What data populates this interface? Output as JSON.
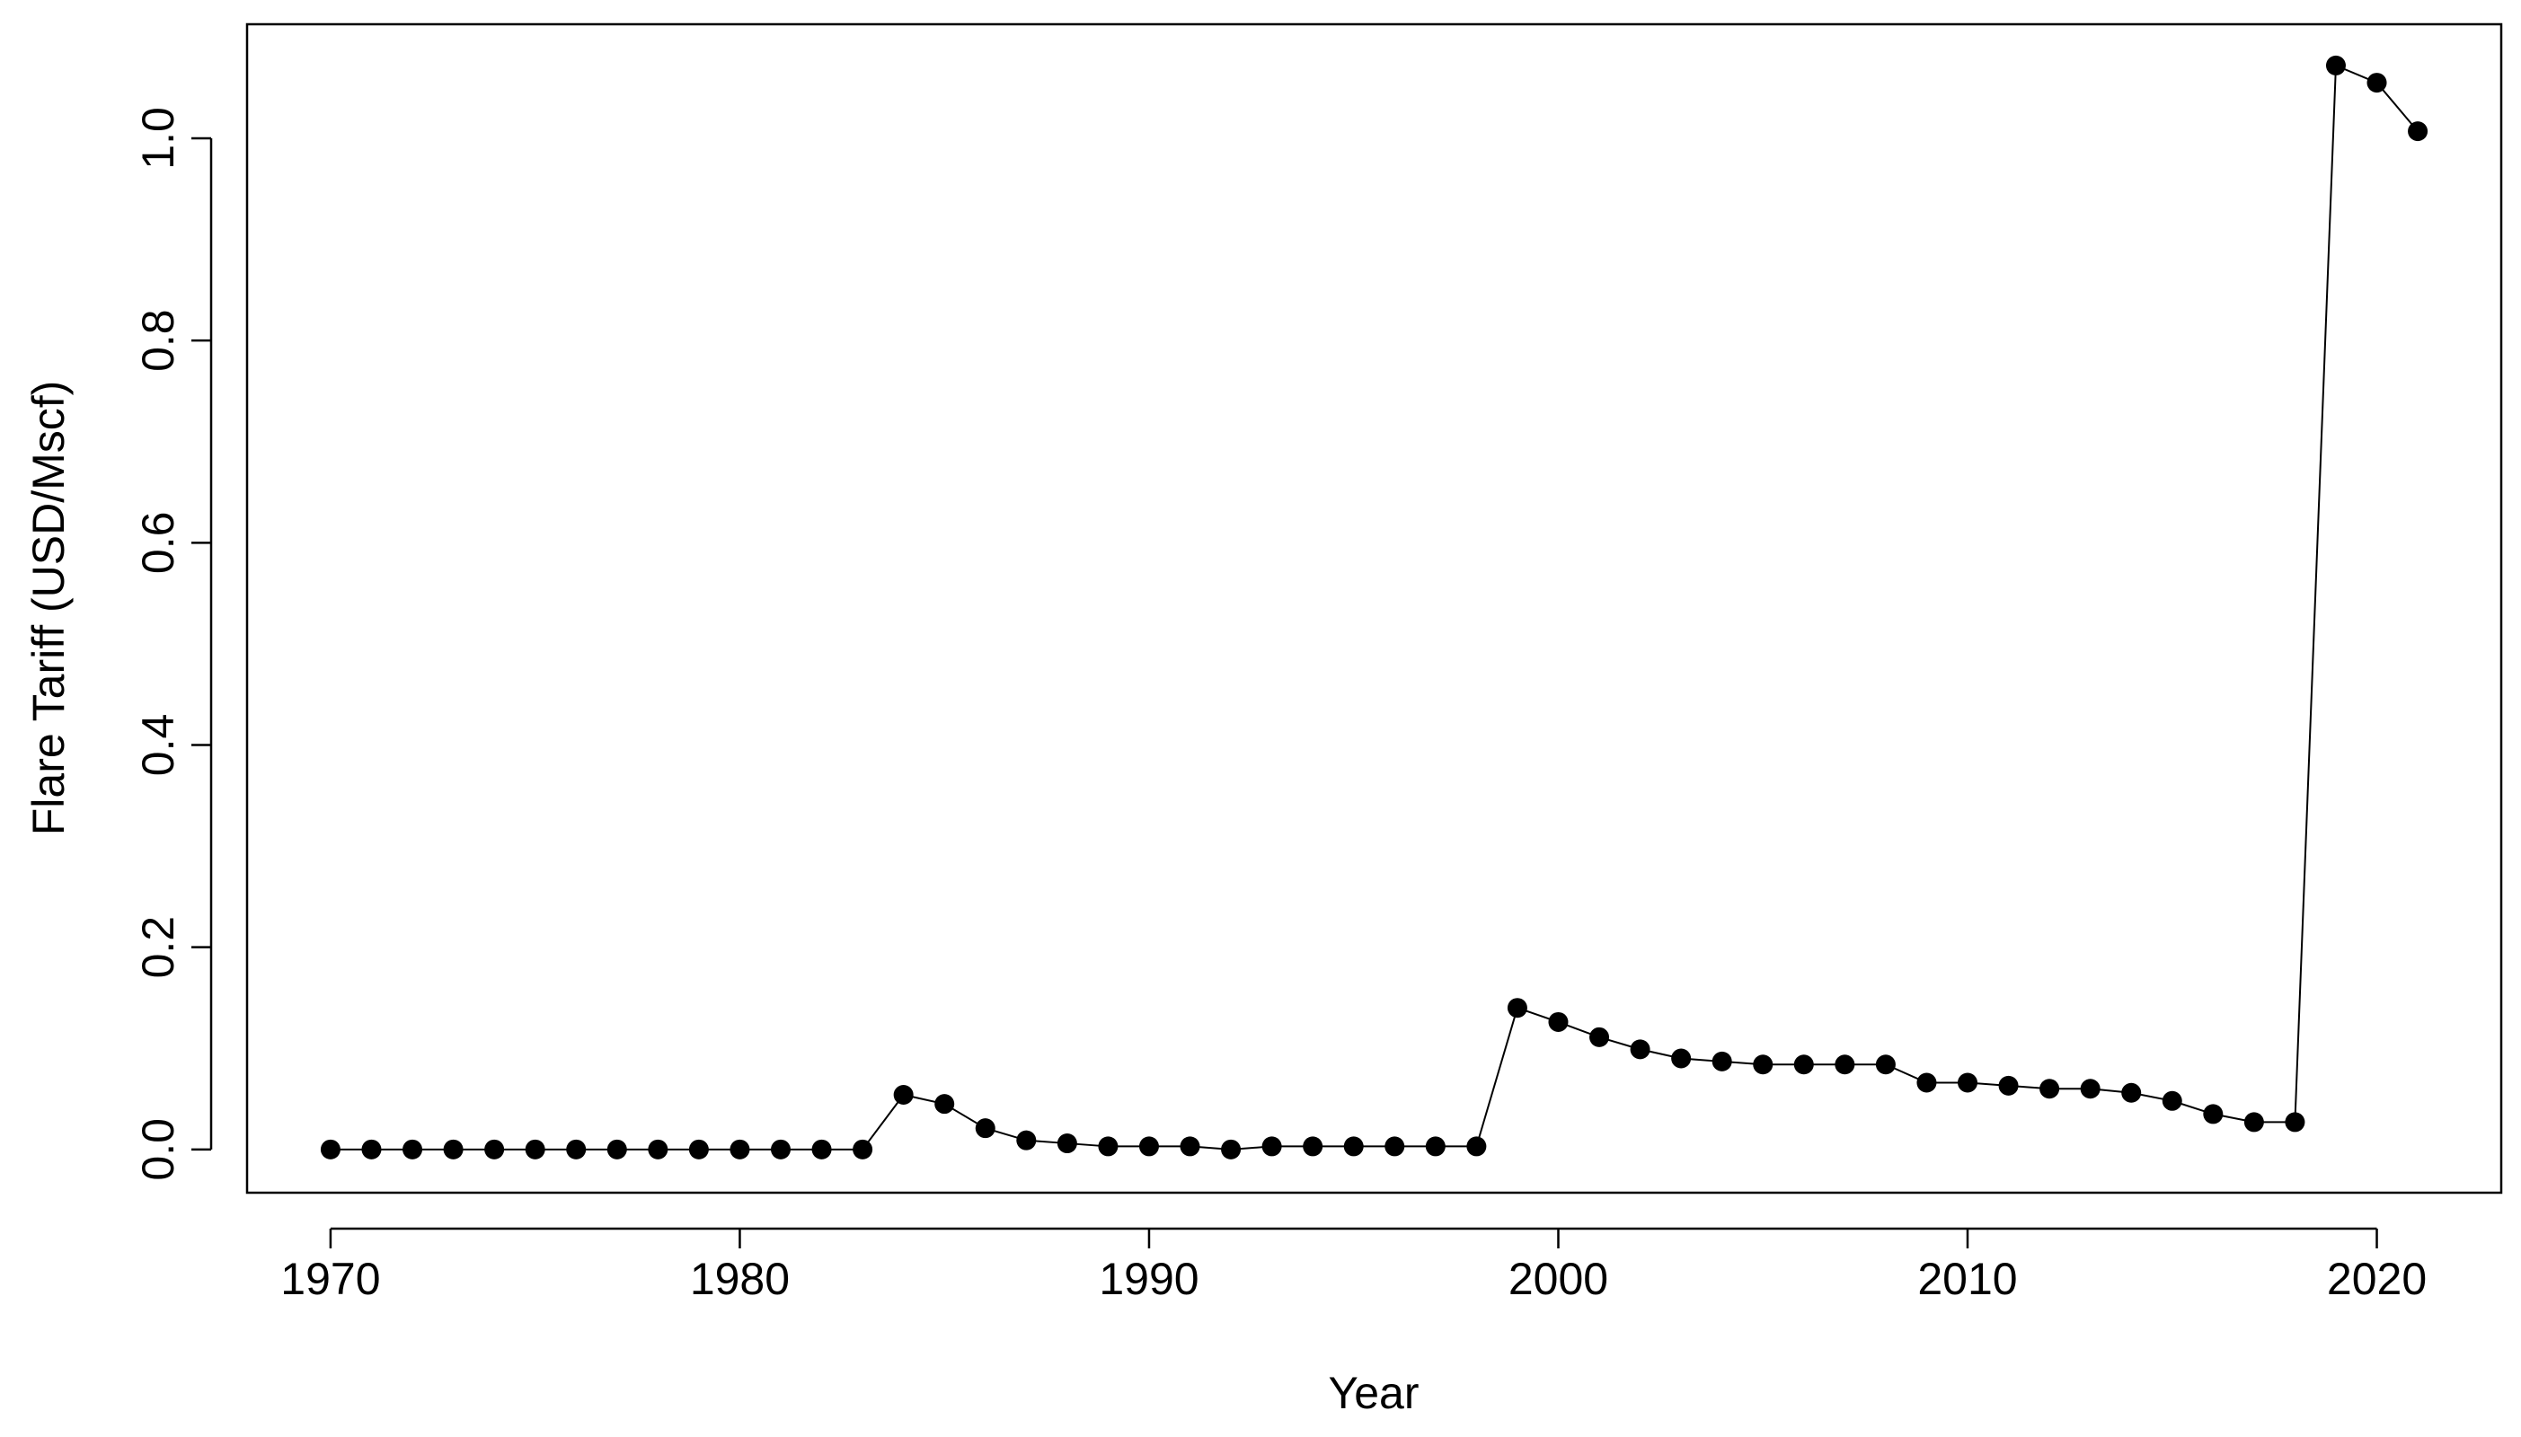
{
  "chart_data": {
    "type": "line",
    "x_label": "Year",
    "y_label": "Flare Tariff (USD/Mscf)",
    "x": [
      1970,
      1971,
      1972,
      1973,
      1974,
      1975,
      1976,
      1977,
      1978,
      1979,
      1980,
      1981,
      1982,
      1983,
      1984,
      1985,
      1986,
      1987,
      1988,
      1989,
      1990,
      1991,
      1992,
      1993,
      1994,
      1995,
      1996,
      1997,
      1998,
      1999,
      2000,
      2001,
      2002,
      2003,
      2004,
      2005,
      2006,
      2007,
      2008,
      2009,
      2010,
      2011,
      2012,
      2013,
      2014,
      2015,
      2016,
      2017,
      2018,
      2019,
      2020,
      2021
    ],
    "values": [
      0,
      0,
      0,
      0,
      0,
      0,
      0,
      0,
      0,
      0,
      0,
      0,
      0,
      0,
      0.054,
      0.045,
      0.021,
      0.009,
      0.006,
      0.003,
      0.003,
      0.003,
      0,
      0.003,
      0.003,
      0.003,
      0.003,
      0.003,
      0.003,
      0.14,
      0.126,
      0.111,
      0.099,
      0.09,
      0.087,
      0.084,
      0.084,
      0.084,
      0.084,
      0.066,
      0.066,
      0.063,
      0.06,
      0.06,
      0.056,
      0.048,
      0.035,
      0.027,
      0.027,
      1.072,
      1.055,
      1.007
    ],
    "color": "#000000",
    "xlim": [
      1967.96,
      2023.04
    ],
    "ylim": [
      -0.0428,
      1.1128
    ],
    "xticks": [
      1970,
      1980,
      1990,
      2000,
      2010,
      2020
    ],
    "yticks": [
      {
        "value": 0,
        "label": "0.0"
      },
      0.2,
      0.4,
      0.6,
      0.8,
      {
        "value": 1,
        "label": "1.0"
      }
    ],
    "grid": false
  }
}
